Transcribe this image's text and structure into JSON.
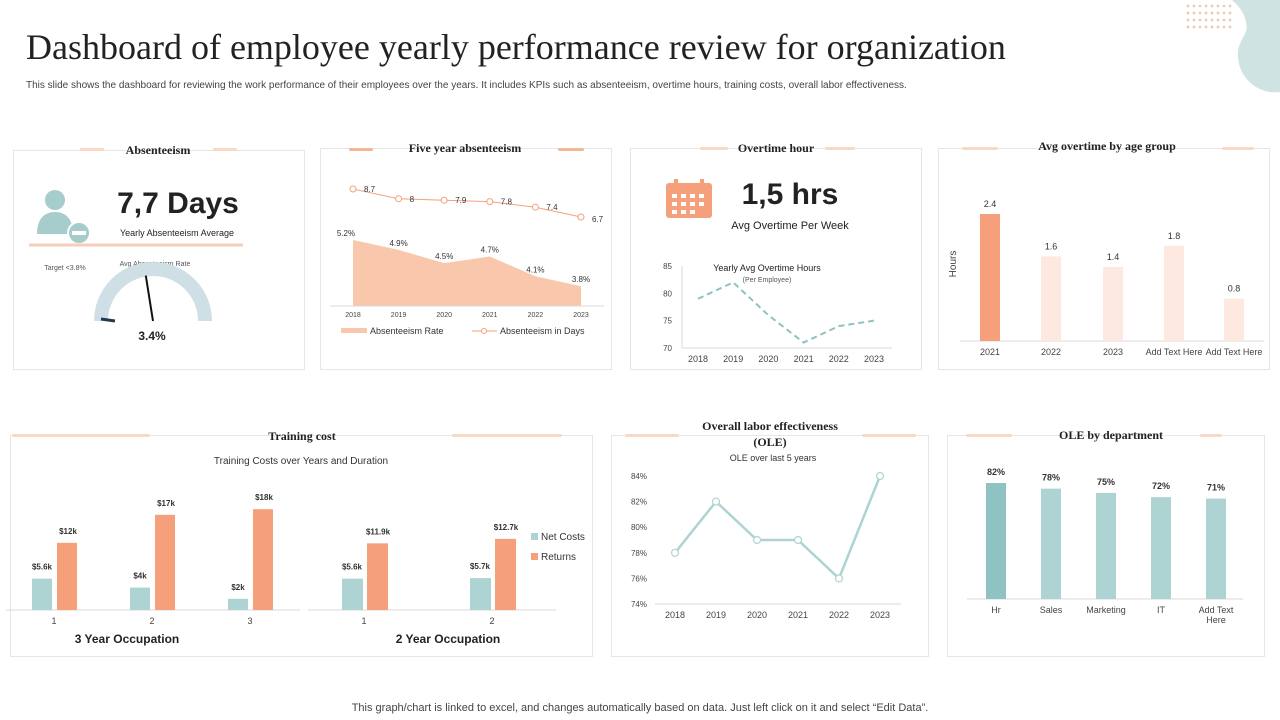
{
  "header": {
    "title": "Dashboard of employee yearly performance review for organization",
    "subtitle": "This slide shows the dashboard for reviewing the work performance of their employees over the years. It includes KPIs such as absenteeism, overtime hours, training costs, overall labor effectiveness."
  },
  "absenteeism": {
    "title": "Absenteeism",
    "days": "7,7 Days",
    "caption": "Yearly Absenteeism Average",
    "target": "Target <3.8%",
    "gauge_label": "Avg Absenteeism Rate",
    "gauge_value": "3.4%",
    "gauge_fraction": 0.45
  },
  "five_year": {
    "title": "Five year absenteeism",
    "legend_rate": "Absenteeism Rate",
    "legend_days": "Absenteeism in Days"
  },
  "overtime": {
    "title": "Overtime hour",
    "value": "1,5 hrs",
    "caption": "Avg Overtime Per Week",
    "chart_title": "Yearly Avg Overtime Hours",
    "chart_subtitle": "(Per Employee)"
  },
  "age_group": {
    "title": "Avg overtime by age group"
  },
  "training": {
    "title": "Training cost",
    "chart_title": "Training Costs over Years and Duration",
    "group1": "3 Year Occupation",
    "group2": "2 Year Occupation"
  },
  "ole": {
    "title": "Overall labor effectiveness",
    "title2": "(OLE)",
    "chart_title": "OLE over last 5 years"
  },
  "ole_dept": {
    "title": "OLE by department"
  },
  "footer": "This graph/chart is linked to excel,  and changes automatically based on data. Just left click on it and select “Edit Data”.",
  "colors": {
    "orange": "#f5a07a",
    "peach": "#f9c8ac",
    "light_peach": "#fde9e0",
    "teal": "#aed3d3",
    "teal_dark": "#8fc2c2",
    "gauge": "#cfdfe6"
  },
  "chart_data": [
    {
      "id": "five_year",
      "type": "area",
      "categories": [
        "2018",
        "2019",
        "2020",
        "2021",
        "2022",
        "2023"
      ],
      "series": [
        {
          "name": "Absenteeism Rate",
          "values": [
            5.2,
            4.9,
            4.5,
            4.7,
            4.1,
            3.8
          ],
          "labels": [
            "5.2%",
            "4.9%",
            "4.5%",
            "4.7%",
            "4.1%",
            "3.8%"
          ]
        },
        {
          "name": "Absenteeism in Days",
          "values": [
            8.7,
            8,
            7.9,
            7.8,
            7.4,
            6.7
          ],
          "labels": [
            "8.7",
            "8",
            "7.9",
            "7.8",
            "7.4",
            "6.7"
          ]
        }
      ]
    },
    {
      "id": "overtime",
      "type": "line",
      "title": "Yearly Avg Overtime Hours",
      "categories": [
        "2018",
        "2019",
        "2020",
        "2021",
        "2022",
        "2023"
      ],
      "values": [
        79,
        82,
        76,
        71,
        74,
        75
      ],
      "yticks": [
        "70",
        "75",
        "80",
        "85"
      ],
      "ylim": [
        70,
        85
      ]
    },
    {
      "id": "age_group",
      "type": "bar",
      "ylabel": "Hours",
      "categories": [
        "2021",
        "2022",
        "2023",
        "Add Text Here",
        "Add Text Here"
      ],
      "values": [
        2.4,
        1.6,
        1.4,
        1.8,
        0.8
      ],
      "labels": [
        "2.4",
        "1.6",
        "1.4",
        "1.8",
        "0.8"
      ],
      "ylim": [
        0,
        2.8
      ]
    },
    {
      "id": "training",
      "type": "bar",
      "title": "Training Costs over Years and Duration",
      "groups": [
        {
          "name": "3 Year Occupation",
          "categories": [
            "1",
            "2",
            "3"
          ],
          "net": [
            5.6,
            4,
            2
          ],
          "returns": [
            12,
            17,
            18
          ],
          "net_labels": [
            "$5.6k",
            "$4k",
            "$2k"
          ],
          "returns_labels": [
            "$12k",
            "$17k",
            "$18k"
          ]
        },
        {
          "name": "2 Year Occupation",
          "categories": [
            "1",
            "2"
          ],
          "net": [
            5.6,
            5.7
          ],
          "returns": [
            11.9,
            12.7
          ],
          "net_labels": [
            "$5.6k",
            "$5.7k"
          ],
          "returns_labels": [
            "$11.9k",
            "$12.7k"
          ]
        }
      ],
      "legend": [
        "Net Costs",
        "Returns"
      ],
      "ylim": [
        0,
        20
      ]
    },
    {
      "id": "ole",
      "type": "line",
      "title": "OLE over last 5 years",
      "categories": [
        "2018",
        "2019",
        "2020",
        "2021",
        "2022",
        "2023"
      ],
      "values": [
        78,
        82,
        79,
        79,
        76,
        84
      ],
      "yticks": [
        "74%",
        "76%",
        "78%",
        "80%",
        "82%",
        "84%"
      ],
      "ylim": [
        74,
        84
      ]
    },
    {
      "id": "ole_dept",
      "type": "bar",
      "categories": [
        "Hr",
        "Sales",
        "Marketing",
        "IT",
        "Add Text Here"
      ],
      "values": [
        82,
        78,
        75,
        72,
        71
      ],
      "labels": [
        "82%",
        "78%",
        "75%",
        "72%",
        "71%"
      ],
      "ylim": [
        0,
        90
      ]
    }
  ]
}
